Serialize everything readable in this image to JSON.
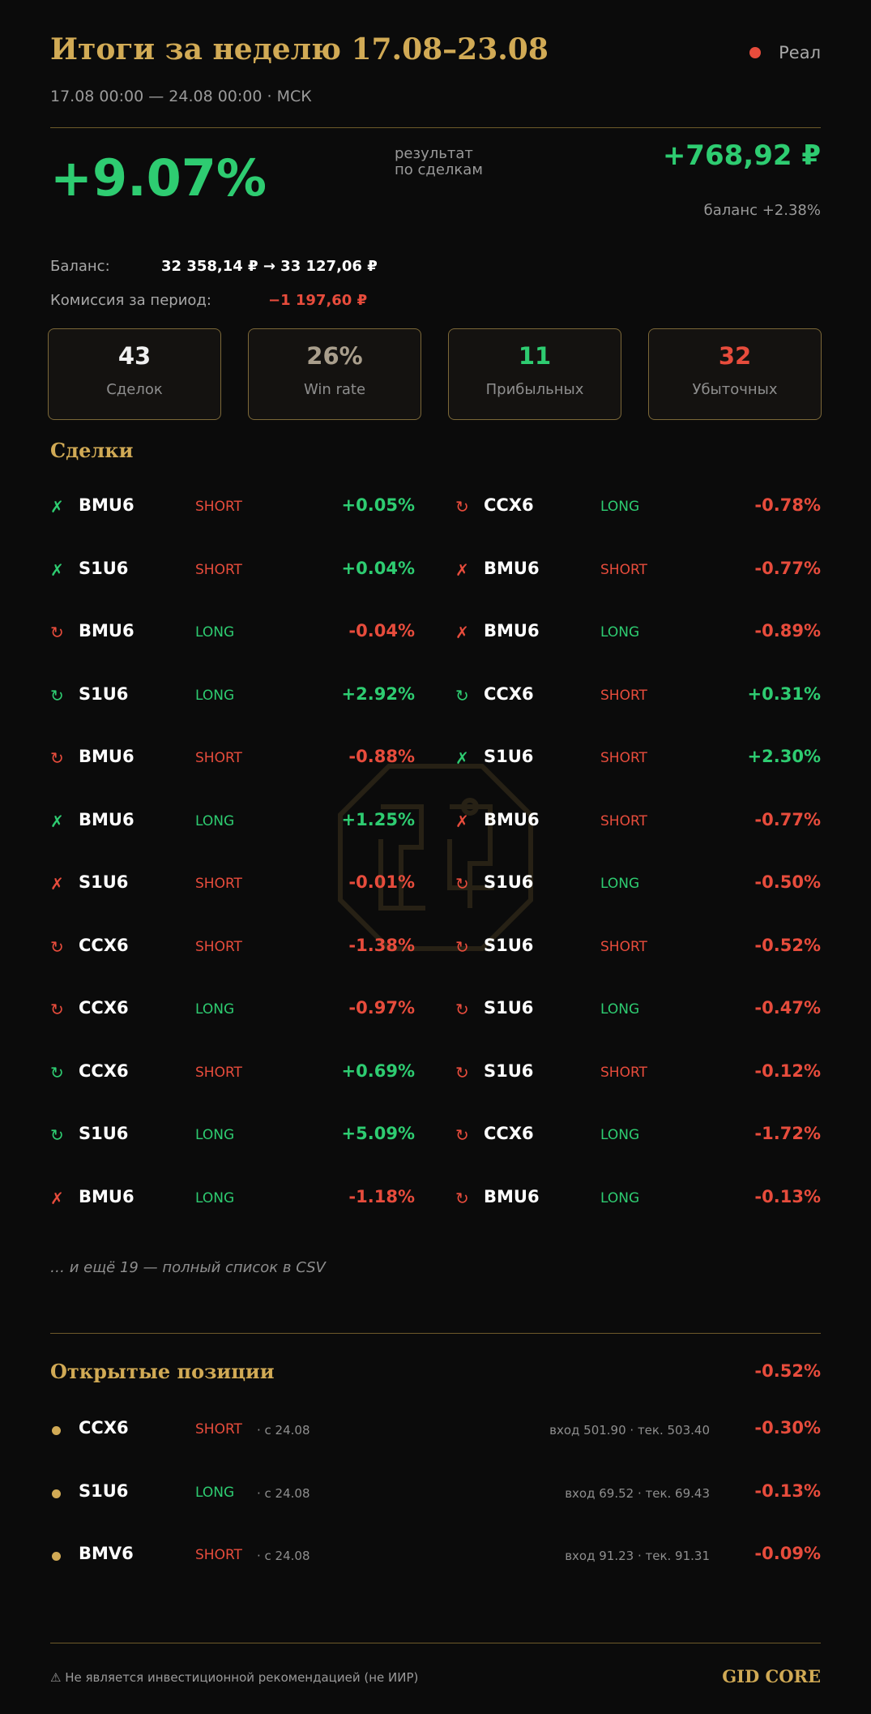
{
  "header": {
    "title": "Итоги за неделю 17.08–23.08",
    "period": "17.08 00:00 — 24.08 00:00 · МСК",
    "mode_label": "Реал"
  },
  "summary": {
    "result_pct": "+9.07%",
    "result_label_line1": "результат",
    "result_label_line2": "по сделкам",
    "pnl": "+768,92 ₽",
    "balance_change": "баланс +2.38%",
    "balance_label": "Баланс:",
    "balance_value": "32 358,14 ₽ → 33 127,06 ₽",
    "commission_label": "Комиссия за период:",
    "commission_value": "−1 197,60 ₽"
  },
  "stats": [
    {
      "value": "43",
      "label": "Сделок",
      "color": "#f0f0f0"
    },
    {
      "value": "26%",
      "label": "Win rate",
      "color": "#a99e8c"
    },
    {
      "value": "11",
      "label": "Прибыльных",
      "color": "#2ecc71"
    },
    {
      "value": "32",
      "label": "Убыточных",
      "color": "#e74c3c"
    }
  ],
  "trades_title": "Сделки",
  "trades_left": [
    {
      "icon": "✗",
      "icon_color": "green",
      "ticker": "BMU6",
      "side": "SHORT",
      "pct": "+0.05%"
    },
    {
      "icon": "✗",
      "icon_color": "green",
      "ticker": "S1U6",
      "side": "SHORT",
      "pct": "+0.04%"
    },
    {
      "icon": "↻",
      "icon_color": "red",
      "ticker": "BMU6",
      "side": "LONG",
      "pct": "-0.04%"
    },
    {
      "icon": "↻",
      "icon_color": "green",
      "ticker": "S1U6",
      "side": "LONG",
      "pct": "+2.92%"
    },
    {
      "icon": "↻",
      "icon_color": "red",
      "ticker": "BMU6",
      "side": "SHORT",
      "pct": "-0.88%"
    },
    {
      "icon": "✗",
      "icon_color": "green",
      "ticker": "BMU6",
      "side": "LONG",
      "pct": "+1.25%"
    },
    {
      "icon": "✗",
      "icon_color": "red",
      "ticker": "S1U6",
      "side": "SHORT",
      "pct": "-0.01%"
    },
    {
      "icon": "↻",
      "icon_color": "red",
      "ticker": "CCX6",
      "side": "SHORT",
      "pct": "-1.38%"
    },
    {
      "icon": "↻",
      "icon_color": "red",
      "ticker": "CCX6",
      "side": "LONG",
      "pct": "-0.97%"
    },
    {
      "icon": "↻",
      "icon_color": "green",
      "ticker": "CCX6",
      "side": "SHORT",
      "pct": "+0.69%"
    },
    {
      "icon": "↻",
      "icon_color": "green",
      "ticker": "S1U6",
      "side": "LONG",
      "pct": "+5.09%"
    },
    {
      "icon": "✗",
      "icon_color": "red",
      "ticker": "BMU6",
      "side": "LONG",
      "pct": "-1.18%"
    }
  ],
  "trades_right": [
    {
      "icon": "↻",
      "icon_color": "red",
      "ticker": "CCX6",
      "side": "LONG",
      "pct": "-0.78%"
    },
    {
      "icon": "✗",
      "icon_color": "red",
      "ticker": "BMU6",
      "side": "SHORT",
      "pct": "-0.77%"
    },
    {
      "icon": "✗",
      "icon_color": "red",
      "ticker": "BMU6",
      "side": "LONG",
      "pct": "-0.89%"
    },
    {
      "icon": "↻",
      "icon_color": "green",
      "ticker": "CCX6",
      "side": "SHORT",
      "pct": "+0.31%"
    },
    {
      "icon": "✗",
      "icon_color": "green",
      "ticker": "S1U6",
      "side": "SHORT",
      "pct": "+2.30%"
    },
    {
      "icon": "✗",
      "icon_color": "red",
      "ticker": "BMU6",
      "side": "SHORT",
      "pct": "-0.77%"
    },
    {
      "icon": "↻",
      "icon_color": "red",
      "ticker": "S1U6",
      "side": "LONG",
      "pct": "-0.50%"
    },
    {
      "icon": "↻",
      "icon_color": "red",
      "ticker": "S1U6",
      "side": "SHORT",
      "pct": "-0.52%"
    },
    {
      "icon": "↻",
      "icon_color": "red",
      "ticker": "S1U6",
      "side": "LONG",
      "pct": "-0.47%"
    },
    {
      "icon": "↻",
      "icon_color": "red",
      "ticker": "S1U6",
      "side": "SHORT",
      "pct": "-0.12%"
    },
    {
      "icon": "↻",
      "icon_color": "red",
      "ticker": "CCX6",
      "side": "LONG",
      "pct": "-1.72%"
    },
    {
      "icon": "↻",
      "icon_color": "red",
      "ticker": "BMU6",
      "side": "LONG",
      "pct": "-0.13%"
    }
  ],
  "more_text": "… и ещё 19 — полный список в CSV",
  "open_positions": {
    "title": "Открытые позиции",
    "total_pct": "-0.52%",
    "items": [
      {
        "ticker": "CCX6",
        "side": "SHORT",
        "since": "· с 24.08",
        "entry": "вход 501.90 · тек. 503.40",
        "pct": "-0.30%"
      },
      {
        "ticker": "S1U6",
        "side": "LONG",
        "since": "· с 24.08",
        "entry": "вход 69.52 · тек. 69.43",
        "pct": "-0.13%"
      },
      {
        "ticker": "BMV6",
        "side": "SHORT",
        "since": "· с 24.08",
        "entry": "вход 91.23 · тек. 91.31",
        "pct": "-0.09%"
      }
    ]
  },
  "footer": {
    "disclaimer": "⚠ Не является инвестиционной рекомендацией (не ИИР)",
    "brand": "GID CORE"
  },
  "colors": {
    "accent": "#d1aa55",
    "positive": "#2ecc71",
    "negative": "#e74c3c",
    "background": "#0b0b0b"
  }
}
